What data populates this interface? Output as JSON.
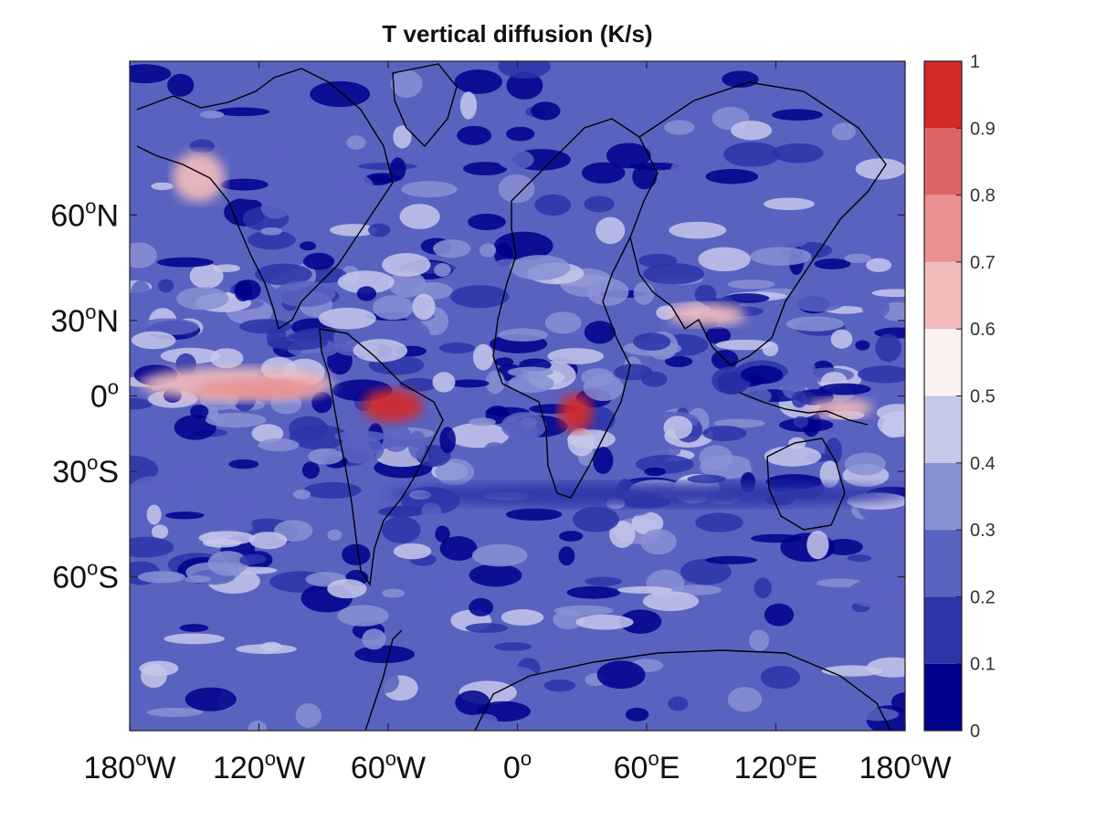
{
  "chart_data": {
    "type": "heatmap",
    "title": "T vertical diffusion (K/s)",
    "projection": "mercator",
    "xlim": [
      -180,
      180
    ],
    "ylim": [
      -80,
      80
    ],
    "x_ticks": [
      {
        "value": -180,
        "num": "180",
        "hemi": "W"
      },
      {
        "value": -120,
        "num": "120",
        "hemi": "W"
      },
      {
        "value": -60,
        "num": "60",
        "hemi": "W"
      },
      {
        "value": 0,
        "num": "0",
        "hemi": ""
      },
      {
        "value": 60,
        "num": "60",
        "hemi": "E"
      },
      {
        "value": 120,
        "num": "120",
        "hemi": "E"
      },
      {
        "value": 180,
        "num": "180",
        "hemi": "W"
      }
    ],
    "y_ticks": [
      {
        "value": 60,
        "num": "60",
        "hemi": "N"
      },
      {
        "value": 30,
        "num": "30",
        "hemi": "N"
      },
      {
        "value": 0,
        "num": "0",
        "hemi": ""
      },
      {
        "value": -30,
        "num": "30",
        "hemi": "S"
      },
      {
        "value": -60,
        "num": "60",
        "hemi": "S"
      }
    ],
    "colorbar": {
      "levels": [
        "0",
        "0.1",
        "0.2",
        "0.3",
        "0.4",
        "0.5",
        "0.6",
        "0.7",
        "0.8",
        "0.9",
        "1"
      ],
      "colors": [
        "#00008b",
        "#2d34a8",
        "#5a62c0",
        "#8a90d4",
        "#c6c8ea",
        "#fdf2f2",
        "#f2bcbc",
        "#e89090",
        "#de6464",
        "#d42a2a"
      ]
    },
    "features": [
      {
        "name": "itcz-pacific",
        "lon": -130,
        "lat": 5,
        "rx": 45,
        "ry": 7,
        "level": 0.65
      },
      {
        "name": "itcz-pacific-core",
        "lon": -120,
        "lat": 3,
        "rx": 30,
        "ry": 4,
        "level": 0.72
      },
      {
        "name": "amazon-max",
        "lon": -58,
        "lat": -4,
        "rx": 14,
        "ry": 7,
        "level": 0.95
      },
      {
        "name": "central-africa-max",
        "lon": 27,
        "lat": -7,
        "rx": 8,
        "ry": 8,
        "level": 0.95
      },
      {
        "name": "tibet",
        "lon": 88,
        "lat": 32,
        "rx": 18,
        "ry": 4,
        "level": 0.6
      },
      {
        "name": "warm-pool",
        "lon": 150,
        "lat": -5,
        "rx": 15,
        "ry": 4,
        "level": 0.62
      },
      {
        "name": "alaska",
        "lon": -148,
        "lat": 67,
        "rx": 12,
        "ry": 4,
        "level": 0.6
      },
      {
        "name": "southern-ocean-band",
        "lon": 60,
        "lat": -38,
        "rx": 120,
        "ry": 4,
        "level": 0.15
      }
    ]
  }
}
